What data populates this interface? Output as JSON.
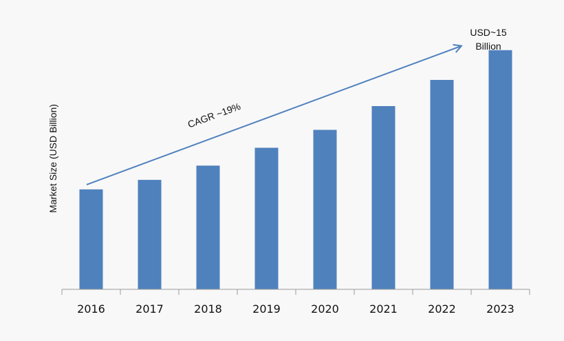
{
  "chart_data": {
    "type": "bar",
    "title": "",
    "xlabel": "",
    "ylabel": "Market Size (USD Billion)",
    "categories": [
      "2016",
      "2017",
      "2018",
      "2019",
      "2020",
      "2021",
      "2022",
      "2023"
    ],
    "values": [
      4.2,
      4.6,
      5.2,
      5.95,
      6.7,
      7.7,
      8.8,
      10.05
    ],
    "ylim": [
      0,
      11
    ],
    "grid": false,
    "legend": "none",
    "bar_color": "#4f81bd",
    "annotations": {
      "cagr": "CAGR ~19%",
      "end_value_line1": "USD~15",
      "end_value_line2": "Billion"
    }
  }
}
